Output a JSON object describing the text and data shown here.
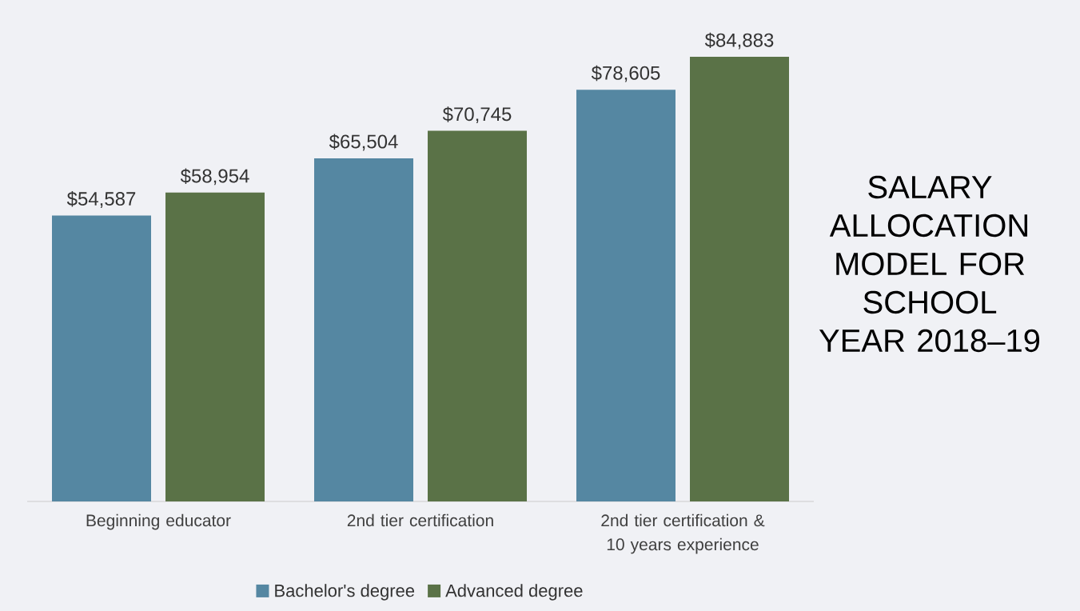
{
  "chart_data": {
    "type": "bar",
    "title": "SALARY ALLOCATION MODEL FOR SCHOOL YEAR 2018–19",
    "categories": [
      "Beginning educator",
      "2nd tier certification",
      "2nd tier certification & 10 years experience"
    ],
    "series": [
      {
        "name": "Bachelor's degree",
        "color": "#5587a2",
        "values": [
          54587,
          65504,
          78605
        ],
        "value_labels": [
          "$54,587",
          "$65,504",
          "$78,605"
        ]
      },
      {
        "name": "Advanced degree",
        "color": "#5a7247",
        "values": [
          58954,
          70745,
          84883
        ],
        "value_labels": [
          "$58,954",
          "$70,745",
          "$84,883"
        ]
      }
    ],
    "legend": "bottom"
  }
}
